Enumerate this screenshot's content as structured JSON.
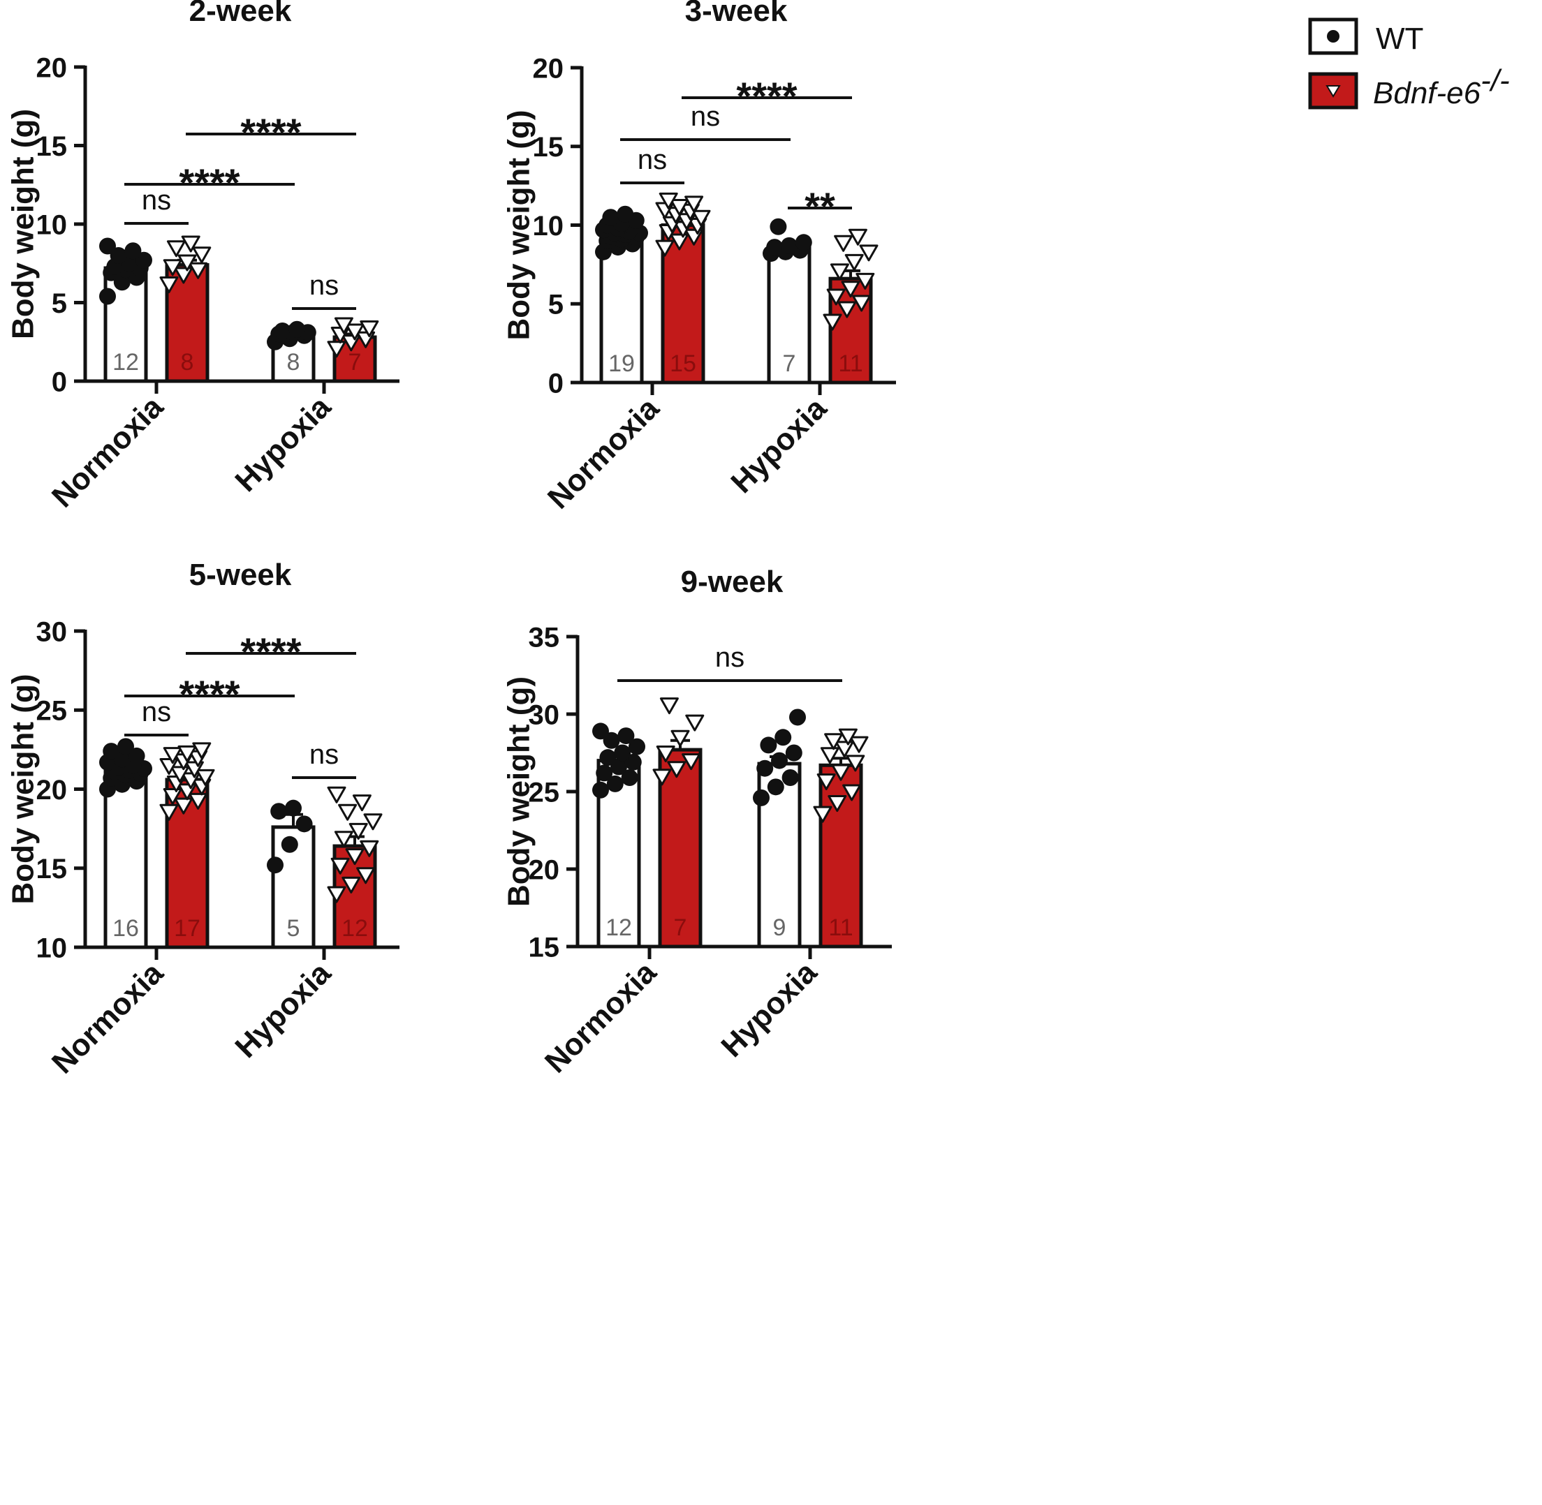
{
  "legend": {
    "wt_label": "WT",
    "ko_label": "Bdnf-e6",
    "ko_superscript": "-/-"
  },
  "colors": {
    "wt_fill": "#ffffff",
    "ko_fill": "#c21a1a",
    "axis": "#111111"
  },
  "chart_data": [
    {
      "type": "bar",
      "title": "2-week",
      "ylabel": "Body weight (g)",
      "ylim": [
        0,
        20
      ],
      "yticks": [
        "0",
        "5",
        "10",
        "15",
        "20"
      ],
      "categories": [
        "Normoxia",
        "Hypoxia"
      ],
      "series": [
        {
          "name": "WT",
          "values": [
            7.2,
            3.0
          ],
          "sem": [
            0.3,
            0.1
          ],
          "n_labels": [
            "12",
            "8"
          ],
          "points": [
            [
              5.4,
              6.3,
              6.6,
              6.9,
              7.1,
              7.2,
              7.3,
              7.5,
              7.7,
              8.0,
              8.3,
              8.6
            ],
            [
              2.5,
              2.7,
              2.9,
              3.0,
              3.1,
              3.1,
              3.2,
              3.3
            ]
          ]
        },
        {
          "name": "Bdnf-e6-/-",
          "values": [
            7.4,
            2.8
          ],
          "sem": [
            0.3,
            0.2
          ],
          "n_labels": [
            "8",
            "7"
          ],
          "points": [
            [
              6.2,
              6.8,
              7.1,
              7.3,
              7.6,
              8.1,
              8.5,
              8.8
            ],
            [
              2.1,
              2.5,
              2.7,
              3.0,
              3.2,
              3.4,
              3.6
            ]
          ]
        }
      ],
      "comparisons": [
        {
          "label": "ns",
          "from": "Normoxia-WT",
          "to": "Normoxia-Bdnf-e6-/-"
        },
        {
          "label": "****",
          "from": "Normoxia-WT",
          "to": "Hypoxia-WT"
        },
        {
          "label": "****",
          "from": "Normoxia-Bdnf-e6-/-",
          "to": "Hypoxia-Bdnf-e6-/-"
        },
        {
          "label": "ns",
          "from": "Hypoxia-WT",
          "to": "Hypoxia-Bdnf-e6-/-"
        }
      ]
    },
    {
      "type": "bar",
      "title": "3-week",
      "ylabel": "Body weight (g)",
      "ylim": [
        0,
        20
      ],
      "yticks": [
        "0",
        "5",
        "10",
        "15",
        "20"
      ],
      "categories": [
        "Normoxia",
        "Hypoxia"
      ],
      "series": [
        {
          "name": "WT",
          "values": [
            9.5,
            8.6
          ],
          "sem": [
            0.15,
            0.2
          ],
          "n_labels": [
            "19",
            "7"
          ],
          "points": [
            [
              8.3,
              8.6,
              8.8,
              9.0,
              9.1,
              9.2,
              9.3,
              9.4,
              9.5,
              9.5,
              9.6,
              9.7,
              9.8,
              9.9,
              10.0,
              10.1,
              10.3,
              10.5,
              10.7
            ],
            [
              8.2,
              8.3,
              8.4,
              8.6,
              8.7,
              8.9,
              9.9
            ]
          ]
        },
        {
          "name": "Bdnf-e6-/-",
          "values": [
            10.0,
            6.6
          ],
          "sem": [
            0.2,
            0.5
          ],
          "n_labels": [
            "15",
            "11"
          ],
          "points": [
            [
              8.6,
              9.0,
              9.3,
              9.6,
              9.8,
              10.0,
              10.1,
              10.3,
              10.5,
              10.7,
              10.9,
              11.0,
              11.2,
              11.4,
              11.6
            ],
            [
              3.9,
              4.7,
              5.1,
              5.5,
              6.0,
              6.5,
              7.1,
              7.7,
              8.3,
              8.9,
              9.3
            ]
          ]
        }
      ],
      "comparisons": [
        {
          "label": "ns",
          "from": "Normoxia-WT",
          "to": "Normoxia-Bdnf-e6-/-"
        },
        {
          "label": "ns",
          "from": "Normoxia-WT",
          "to": "Hypoxia-WT"
        },
        {
          "label": "****",
          "from": "Normoxia-Bdnf-e6-/-",
          "to": "Hypoxia-Bdnf-e6-/-"
        },
        {
          "label": "**",
          "from": "Hypoxia-WT",
          "to": "Hypoxia-Bdnf-e6-/-"
        }
      ]
    },
    {
      "type": "bar",
      "title": "5-week",
      "ylabel": "Body weight (g)",
      "ylim": [
        10,
        30
      ],
      "yticks": [
        "10",
        "15",
        "20",
        "25",
        "30"
      ],
      "categories": [
        "Normoxia",
        "Hypoxia"
      ],
      "series": [
        {
          "name": "WT",
          "values": [
            21.2,
            17.6
          ],
          "sem": [
            0.2,
            0.8
          ],
          "n_labels": [
            "16",
            "5"
          ],
          "points": [
            [
              20.0,
              20.3,
              20.5,
              20.7,
              20.9,
              21.0,
              21.1,
              21.2,
              21.3,
              21.4,
              21.5,
              21.7,
              21.9,
              22.1,
              22.4,
              22.7
            ],
            [
              15.2,
              16.5,
              17.8,
              18.6,
              18.8
            ]
          ]
        },
        {
          "name": "Bdnf-e6-/-",
          "values": [
            20.6,
            16.4
          ],
          "sem": [
            0.3,
            0.6
          ],
          "n_labels": [
            "17",
            "12"
          ],
          "points": [
            [
              18.6,
              19.0,
              19.3,
              19.6,
              19.9,
              20.2,
              20.4,
              20.6,
              20.8,
              21.0,
              21.3,
              21.5,
              21.8,
              22.0,
              22.2,
              22.3,
              22.5
            ],
            [
              13.4,
              14.0,
              14.6,
              15.2,
              15.8,
              16.3,
              16.9,
              17.4,
              18.0,
              18.6,
              19.2,
              19.7
            ]
          ]
        }
      ],
      "comparisons": [
        {
          "label": "ns",
          "from": "Normoxia-WT",
          "to": "Normoxia-Bdnf-e6-/-"
        },
        {
          "label": "****",
          "from": "Normoxia-WT",
          "to": "Hypoxia-WT"
        },
        {
          "label": "****",
          "from": "Normoxia-Bdnf-e6-/-",
          "to": "Hypoxia-Bdnf-e6-/-"
        },
        {
          "label": "ns",
          "from": "Hypoxia-WT",
          "to": "Hypoxia-Bdnf-e6-/-"
        }
      ]
    },
    {
      "type": "bar",
      "title": "9-week",
      "ylabel": "Body weight (g)",
      "ylim": [
        15,
        35
      ],
      "yticks": [
        "15",
        "20",
        "25",
        "30",
        "35"
      ],
      "categories": [
        "Normoxia",
        "Hypoxia"
      ],
      "series": [
        {
          "name": "WT",
          "values": [
            27.0,
            26.8
          ],
          "sem": [
            0.35,
            0.45
          ],
          "n_labels": [
            "12",
            "9"
          ],
          "points": [
            [
              25.1,
              25.5,
              25.9,
              26.2,
              26.6,
              26.9,
              27.2,
              27.5,
              27.9,
              28.3,
              28.6,
              28.9
            ],
            [
              24.6,
              25.3,
              25.9,
              26.5,
              27.0,
              27.5,
              28.0,
              28.5,
              29.8
            ]
          ]
        },
        {
          "name": "Bdnf-e6-/-",
          "values": [
            27.7,
            26.7
          ],
          "sem": [
            0.6,
            0.45
          ],
          "n_labels": [
            "7",
            "11"
          ],
          "points": [
            [
              26.0,
              26.5,
              27.0,
              27.5,
              28.5,
              29.5,
              30.6
            ],
            [
              23.6,
              24.3,
              25.0,
              25.7,
              26.3,
              26.9,
              27.4,
              27.8,
              28.1,
              28.3,
              28.6
            ]
          ]
        }
      ],
      "comparisons": [
        {
          "label": "ns",
          "from": "Normoxia-WT",
          "to": "Hypoxia-Bdnf-e6-/-"
        }
      ]
    }
  ]
}
